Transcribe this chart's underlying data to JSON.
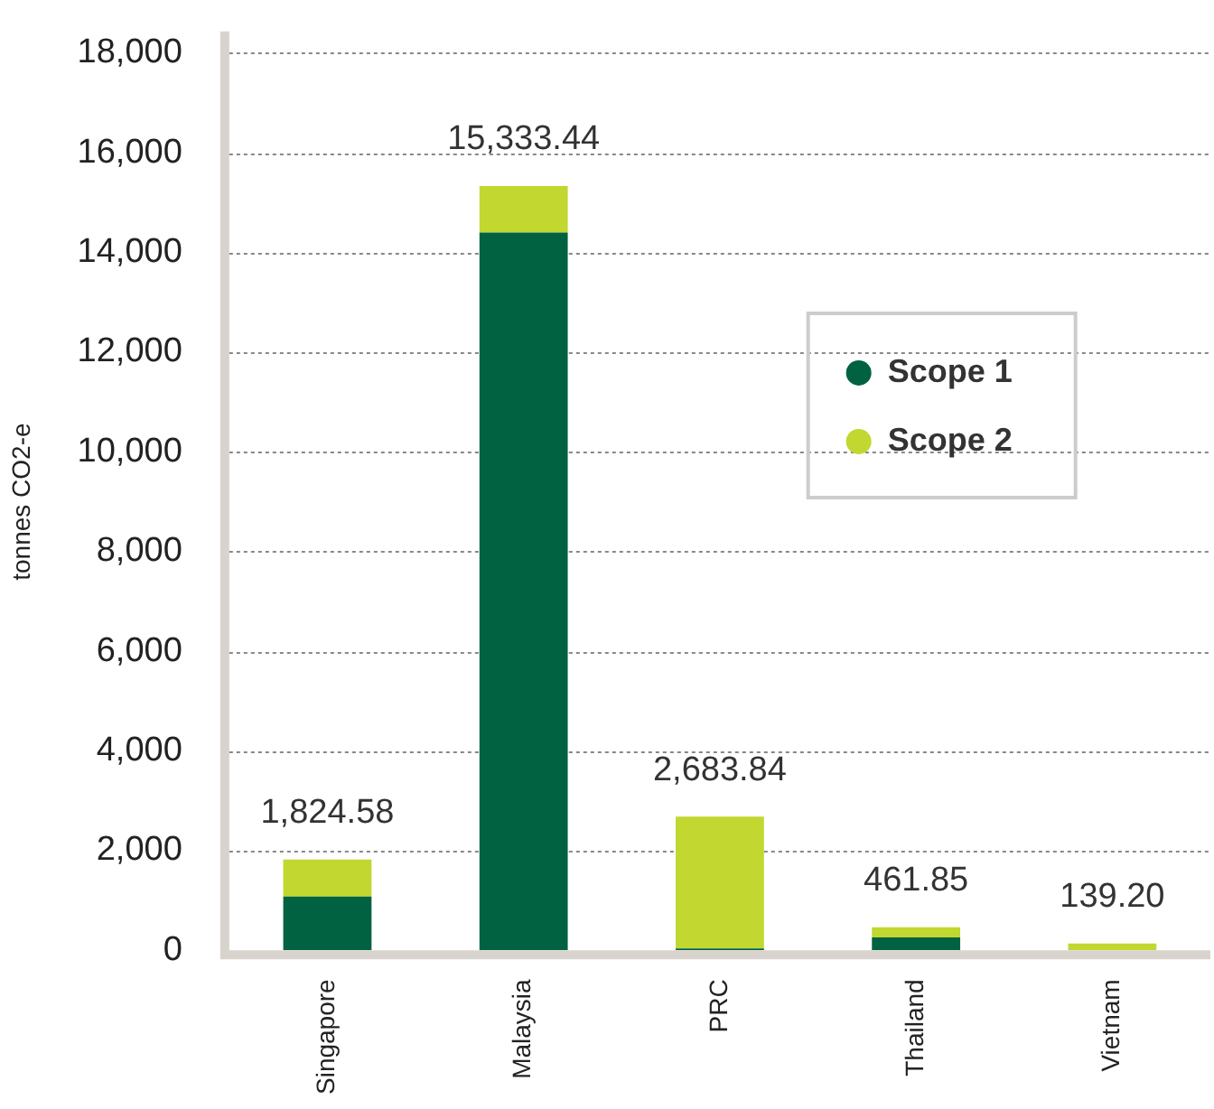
{
  "chart_data": {
    "type": "bar",
    "stacked": true,
    "ylabel": "tonnes CO2-e",
    "categories": [
      "Singapore",
      "Malaysia",
      "PRC",
      "Thailand",
      "Vietnam"
    ],
    "series": [
      {
        "name": "Scope 1",
        "color": "#006241",
        "values": [
          1080,
          14400,
          40,
          260,
          0
        ]
      },
      {
        "name": "Scope 2",
        "color": "#c2d72f",
        "values": [
          744.58,
          933.44,
          2643.84,
          201.85,
          139.2
        ]
      }
    ],
    "totals": [
      "1,824.58",
      "15,333.44",
      "2,683.84",
      "461.85",
      "139.20"
    ],
    "ylim": [
      0,
      18000
    ],
    "yticks": [
      {
        "value": 0,
        "label": "0"
      },
      {
        "value": 2000,
        "label": "2,000"
      },
      {
        "value": 4000,
        "label": "4,000"
      },
      {
        "value": 6000,
        "label": "6,000"
      },
      {
        "value": 8000,
        "label": "8,000"
      },
      {
        "value": 10000,
        "label": "10,000"
      },
      {
        "value": 12000,
        "label": "12,000"
      },
      {
        "value": 14000,
        "label": "14,000"
      },
      {
        "value": 16000,
        "label": "16,000"
      },
      {
        "value": 18000,
        "label": "18,000"
      }
    ],
    "grid": "y",
    "legend": "top right"
  }
}
